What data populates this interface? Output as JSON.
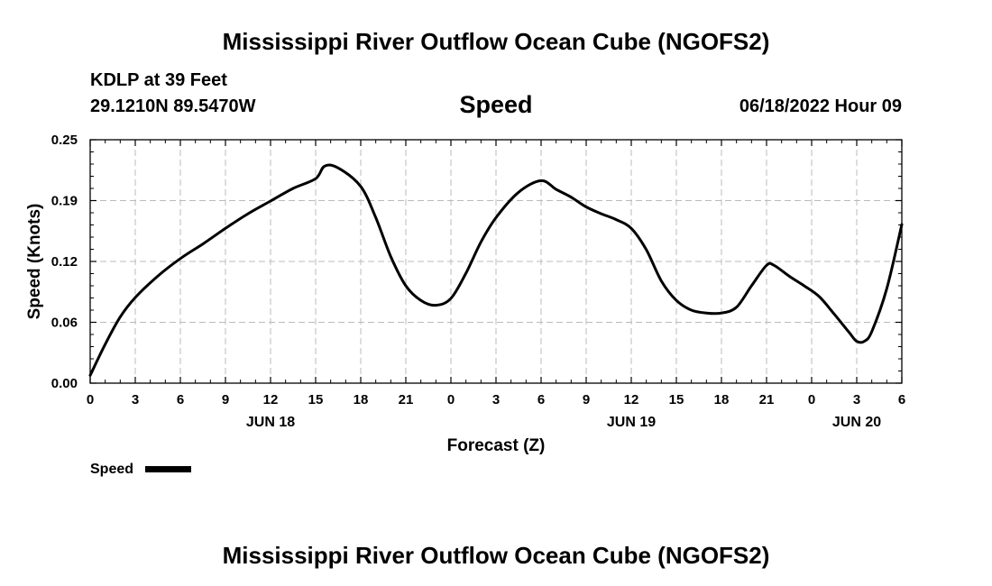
{
  "page": {
    "title": "Mississippi River Outflow Ocean Cube (NGOFS2)",
    "footer_title": "Mississippi River Outflow Ocean Cube (NGOFS2)",
    "station": "KDLP at 39 Feet",
    "location": "29.1210N  89.5470W",
    "parameter": "Speed",
    "timestamp": "06/18/2022 Hour 09"
  },
  "chart_data": {
    "type": "line",
    "title": "Speed",
    "xlabel": "Forecast (Z)",
    "ylabel": "Speed (Knots)",
    "xlim": [
      0,
      54
    ],
    "ylim": [
      0,
      0.25
    ],
    "grid": true,
    "legend_position": "bottom-left",
    "line_color": "#000000",
    "x_ticks": [
      0,
      3,
      6,
      9,
      12,
      15,
      18,
      21,
      24,
      27,
      30,
      33,
      36,
      39,
      42,
      45,
      48,
      51,
      54
    ],
    "x_tick_labels": [
      "0",
      "3",
      "6",
      "9",
      "12",
      "15",
      "18",
      "21",
      "0",
      "3",
      "6",
      "9",
      "12",
      "15",
      "18",
      "21",
      "0",
      "3",
      "6"
    ],
    "date_labels": [
      {
        "x": 12,
        "label": "JUN 18"
      },
      {
        "x": 36,
        "label": "JUN 19"
      },
      {
        "x": 60,
        "label": "JUN 20"
      }
    ],
    "y_ticks": [
      0.0,
      0.0625,
      0.125,
      0.1875,
      0.25
    ],
    "y_tick_labels": [
      "0.00",
      "0.06",
      "0.12",
      "0.19",
      "0.25"
    ],
    "series": [
      {
        "name": "Speed",
        "x": [
          0,
          1,
          2,
          3,
          4.5,
          6,
          7.5,
          9,
          10.5,
          12,
          13.5,
          15,
          15.6,
          16.5,
          18,
          19,
          20,
          21,
          22,
          23,
          24,
          25,
          26,
          27,
          28.5,
          30,
          31,
          32,
          33,
          34,
          35,
          36,
          37,
          38,
          39,
          40,
          41,
          42,
          43,
          44,
          45,
          45.5,
          46.5,
          47.5,
          48.5,
          49.5,
          50.5,
          51,
          51.5,
          52,
          53,
          54
        ],
        "y": [
          0.008,
          0.04,
          0.068,
          0.088,
          0.11,
          0.128,
          0.143,
          0.159,
          0.174,
          0.187,
          0.2,
          0.21,
          0.223,
          0.221,
          0.202,
          0.17,
          0.13,
          0.1,
          0.085,
          0.08,
          0.087,
          0.113,
          0.145,
          0.17,
          0.196,
          0.208,
          0.199,
          0.191,
          0.181,
          0.174,
          0.168,
          0.159,
          0.137,
          0.105,
          0.085,
          0.075,
          0.072,
          0.072,
          0.078,
          0.1,
          0.121,
          0.121,
          0.11,
          0.1,
          0.089,
          0.071,
          0.052,
          0.043,
          0.043,
          0.053,
          0.097,
          0.163
        ]
      }
    ]
  }
}
